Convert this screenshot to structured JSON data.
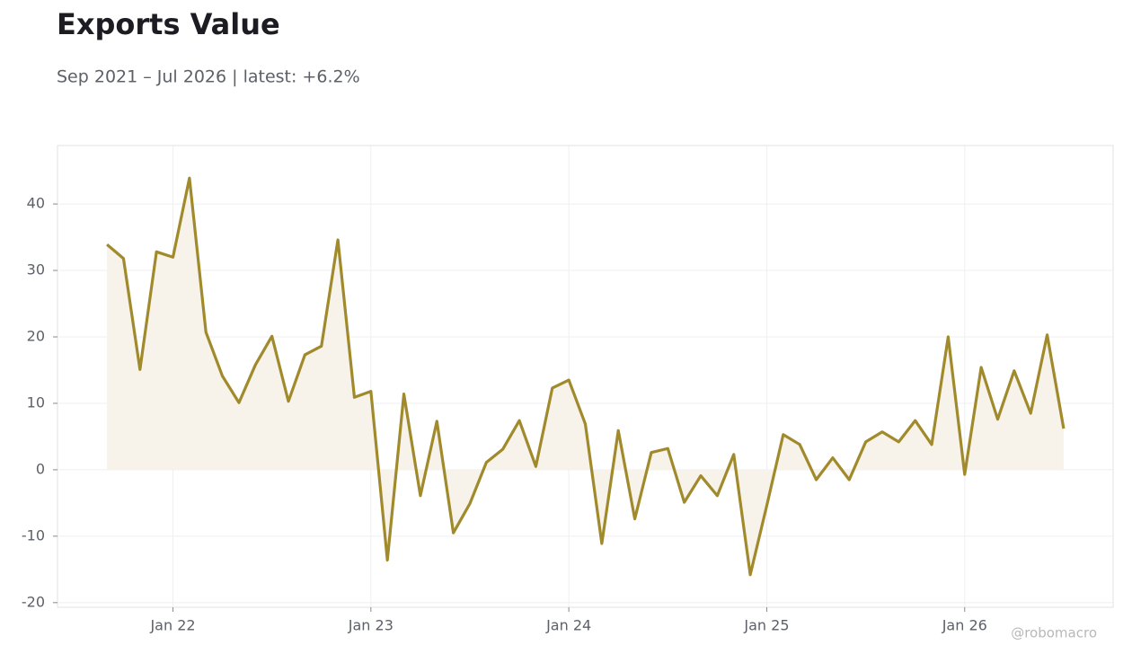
{
  "chart_data": {
    "type": "line",
    "title": "Exports Value",
    "subtitle": "Sep 2021 – Jul 2026 | latest: +6.2%",
    "credit": "@robomacro",
    "x": [
      "2021-09",
      "2021-10",
      "2021-11",
      "2021-12",
      "2022-01",
      "2022-02",
      "2022-03",
      "2022-04",
      "2022-05",
      "2022-06",
      "2022-07",
      "2022-08",
      "2022-09",
      "2022-10",
      "2022-11",
      "2022-12",
      "2023-01",
      "2023-02",
      "2023-03",
      "2023-04",
      "2023-05",
      "2023-06",
      "2023-07",
      "2023-08",
      "2023-09",
      "2023-10",
      "2023-11",
      "2023-12",
      "2024-01",
      "2024-02",
      "2024-03",
      "2024-04",
      "2024-05",
      "2024-06",
      "2024-07",
      "2024-08",
      "2024-09",
      "2024-10",
      "2024-11",
      "2024-12",
      "2025-01",
      "2025-02",
      "2025-03",
      "2025-04",
      "2025-05",
      "2025-06",
      "2025-07",
      "2025-08",
      "2025-09",
      "2025-10",
      "2025-11",
      "2025-12",
      "2026-01",
      "2026-02",
      "2026-03",
      "2026-04",
      "2026-05",
      "2026-06",
      "2026-07"
    ],
    "series": [
      {
        "name": "Exports Value",
        "color": "#a08a2c",
        "fill": "#f7f3ea",
        "values": [
          33.9,
          31.8,
          15.1,
          32.8,
          32.0,
          43.9,
          20.7,
          14.1,
          10.1,
          15.8,
          20.1,
          10.3,
          17.3,
          18.6,
          34.6,
          10.9,
          11.8,
          -13.6,
          11.4,
          -3.9,
          7.3,
          -9.5,
          -5.1,
          1.1,
          3.1,
          7.4,
          0.5,
          12.3,
          13.5,
          6.9,
          -11.1,
          5.9,
          -7.4,
          2.6,
          3.2,
          -4.9,
          -0.9,
          -3.9,
          2.3,
          -15.8,
          -5.4,
          5.3,
          3.8,
          -1.5,
          1.8,
          -1.5,
          4.2,
          5.7,
          4.2,
          7.4,
          3.8,
          20.0,
          -0.7,
          15.4,
          7.6,
          14.9,
          8.5,
          20.3,
          6.2
        ]
      }
    ],
    "xlim": [
      "2021-06",
      "2026-10"
    ],
    "xticks": [
      {
        "value": "2022-01",
        "label": "Jan 22"
      },
      {
        "value": "2023-01",
        "label": "Jan 23"
      },
      {
        "value": "2024-01",
        "label": "Jan 24"
      },
      {
        "value": "2025-01",
        "label": "Jan 25"
      },
      {
        "value": "2026-01",
        "label": "Jan 26"
      }
    ],
    "ylim": [
      -20.7,
      48.8
    ],
    "yticks": [
      -20,
      -10,
      0,
      10,
      20,
      30,
      40
    ],
    "grid": true
  }
}
